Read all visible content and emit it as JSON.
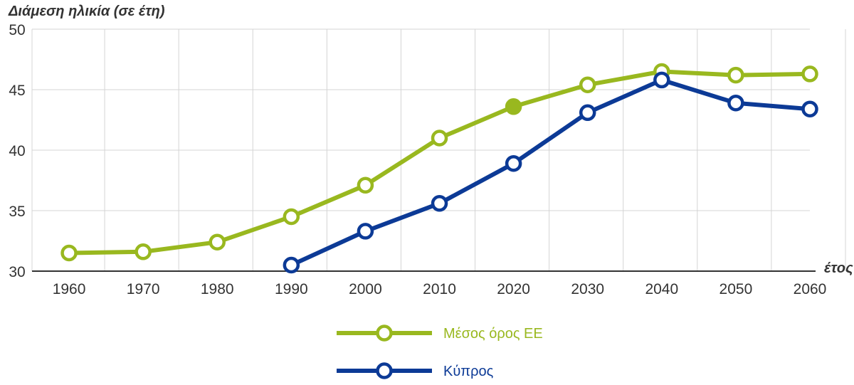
{
  "chart_data": {
    "type": "line",
    "ylabel": "Διάμεση ηλικία (σε έτη)",
    "xlabel": "έτος",
    "x": [
      1960,
      1970,
      1980,
      1990,
      2000,
      2010,
      2020,
      2030,
      2040,
      2050,
      2060
    ],
    "xlim": [
      1955,
      2060
    ],
    "ylim": [
      30,
      50
    ],
    "yticks": [
      30,
      35,
      40,
      45,
      50
    ],
    "grid": true,
    "legend_position": "bottom-center",
    "series": [
      {
        "name": "Μέσος όρος ΕΕ",
        "color": "#99b81f",
        "values": [
          31.5,
          31.6,
          32.4,
          34.5,
          37.1,
          41.0,
          43.6,
          45.4,
          46.5,
          46.2,
          46.3
        ],
        "filled_point_index": 6
      },
      {
        "name": "Κύπρος",
        "color": "#0c3a96",
        "values": [
          null,
          null,
          null,
          30.5,
          33.3,
          35.6,
          38.9,
          43.1,
          45.8,
          43.9,
          43.4
        ]
      }
    ]
  }
}
